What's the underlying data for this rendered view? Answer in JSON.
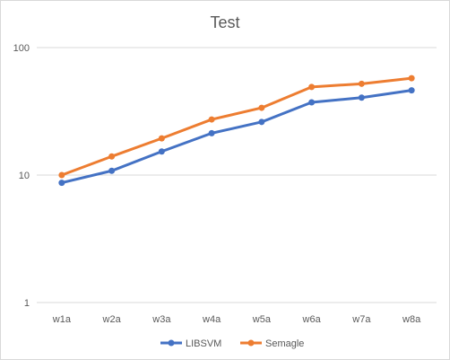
{
  "chart_data": {
    "type": "line",
    "title": "Test",
    "xlabel": "",
    "ylabel": "",
    "yscale": "log",
    "ylim": [
      1,
      100
    ],
    "y_ticks": [
      "1",
      "10",
      "100"
    ],
    "grid": true,
    "legend": "bottom",
    "categories": [
      "w1a",
      "w2a",
      "w3a",
      "w4a",
      "w5a",
      "w6a",
      "w7a",
      "w8a"
    ],
    "series": [
      {
        "name": "LIBSVM",
        "color": "#4472c4",
        "values": [
          8.7,
          10.8,
          15.3,
          21.3,
          26.1,
          37.2,
          40.5,
          46.2
        ]
      },
      {
        "name": "Semagle",
        "color": "#ed7d31",
        "values": [
          10.0,
          14.0,
          19.4,
          27.3,
          33.7,
          49.1,
          52.0,
          57.5
        ]
      }
    ]
  }
}
